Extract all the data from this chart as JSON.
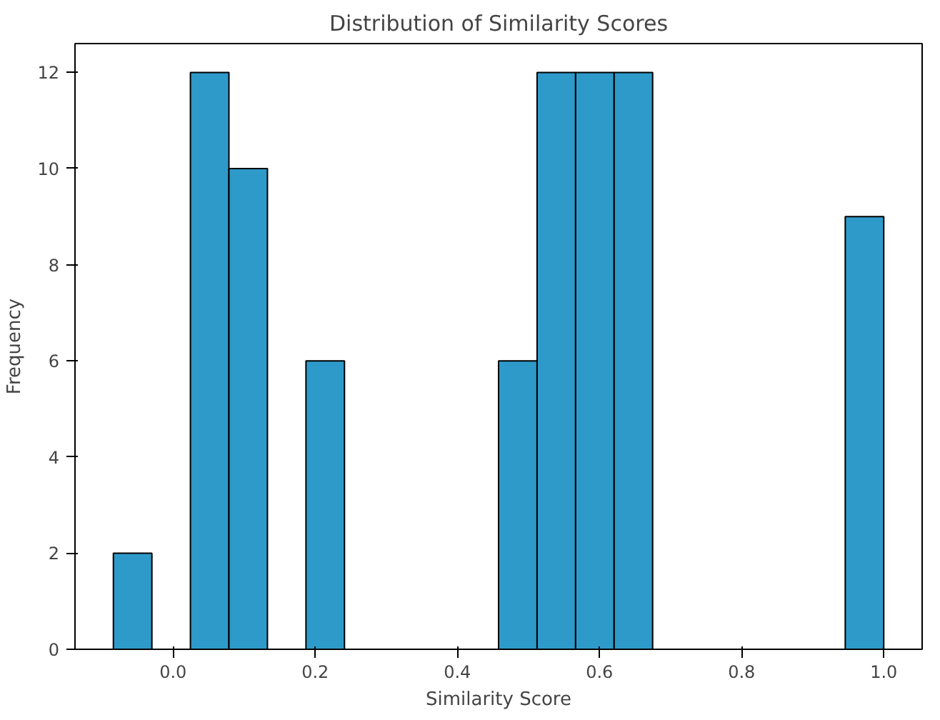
{
  "chart_data": {
    "type": "histogram",
    "title": "Distribution of Similarity Scores",
    "xlabel": "Similarity Score",
    "ylabel": "Frequency",
    "bins": [
      -0.084,
      -0.0298,
      0.0244,
      0.0786,
      0.1328,
      0.187,
      0.2412,
      0.2954,
      0.3496,
      0.4038,
      0.458,
      0.5122,
      0.5664,
      0.6206,
      0.6748,
      0.729,
      0.7832,
      0.8374,
      0.8916,
      0.9458,
      1.0
    ],
    "values": [
      2,
      0,
      12,
      10,
      0,
      6,
      0,
      0,
      0,
      0,
      6,
      12,
      12,
      12,
      0,
      0,
      0,
      0,
      0,
      9
    ],
    "color": "#2e9ac9",
    "xlim": [
      -0.138,
      1.054
    ],
    "ylim": [
      0,
      12.6
    ],
    "xticks": [
      {
        "value": 0,
        "label": "0.0"
      },
      0.2,
      0.4,
      0.6,
      0.8,
      {
        "value": 1,
        "label": "1.0"
      }
    ],
    "yticks": [
      0,
      2,
      4,
      6,
      8,
      10,
      12
    ],
    "grid": false
  }
}
